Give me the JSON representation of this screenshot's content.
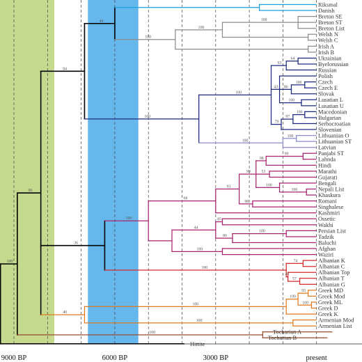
{
  "figure": {
    "time_axis": {
      "labels": [
        {
          "text": "9000 BP",
          "years_bp": 9000
        },
        {
          "text": "6000 BP",
          "years_bp": 6000
        },
        {
          "text": "3000 BP",
          "years_bp": 3000
        },
        {
          "text": "present",
          "years_bp": 0
        }
      ],
      "gridline_interval_years": 1000,
      "range_bp": [
        9500,
        0
      ]
    },
    "shaded_bands": [
      {
        "from_bp": 9500,
        "to_bp": 7800,
        "color": "#c5d98f"
      },
      {
        "from_bp": 6800,
        "to_bp": 5300,
        "color": "#66b8ec"
      }
    ],
    "leaves": [
      "Riksmal",
      "Danish",
      "Breton SE",
      "Breton ST",
      "Breton List",
      "Welsh N",
      "Welsh C",
      "Irish A",
      "Irish B",
      "Ukrainian",
      "Byelorussian",
      "Russian",
      "Polish",
      "Czech",
      "Czech E",
      "Slovak",
      "Lusatian L",
      "Lusatian U",
      "Macedonian",
      "Bulgarian",
      "Serbocroatian",
      "Slovenian",
      "Lithuanian O",
      "Lithuanian ST",
      "Latvian",
      "Panjabi ST",
      "Lahnda",
      "Hindi",
      "Marathi",
      "Gujarati",
      "Bengali",
      "Nepali List",
      "Khaskura",
      "Romani",
      "Singhalese",
      "Kashmiri",
      "Ossetic",
      "Wakhi",
      "Persian List",
      "Tadzik",
      "Baluchi",
      "Afghan",
      "Waziri",
      "Albanian K",
      "Albanian C",
      "Albanian Top",
      "Albanian T",
      "Albanian G",
      "Greek MD",
      "Greek Mod",
      "Greek ML",
      "Greek D",
      "Greek K",
      "Armenian Mod",
      "Armenian List",
      "Tocharian A",
      "Tocharian B",
      "Hittite"
    ],
    "clade_colors": {
      "germanic": "#1aa0dc",
      "celtic": "#8c8c8c",
      "slavic": "#1e2a80",
      "baltic": "#8c8ccc",
      "indo_iranian": "#a8236f",
      "albanian": "#d42a2a",
      "greek_armenian": "#e07b20",
      "tocharian": "#9a4a2e",
      "root": "#000000"
    },
    "support_values": [
      {
        "node": "celtic-root",
        "value": "100"
      },
      {
        "node": "brythonic",
        "value": "100"
      },
      {
        "node": "breton",
        "value": "100"
      },
      {
        "node": "germanic-celtic",
        "value": "44"
      },
      {
        "node": "balto-slavic",
        "value": "100"
      },
      {
        "node": "slavic",
        "value": "100"
      },
      {
        "node": "baltic",
        "value": "100"
      },
      {
        "node": "lithuanian",
        "value": "100"
      },
      {
        "node": "east-slavic",
        "value": "93"
      },
      {
        "node": "ukr-bye",
        "value": "64"
      },
      {
        "node": "west-slavic",
        "value": "43"
      },
      {
        "node": "czech-slovak",
        "value": "86"
      },
      {
        "node": "czech-pair",
        "value": "100"
      },
      {
        "node": "lusatian",
        "value": "100"
      },
      {
        "node": "south-slavic",
        "value": "79"
      },
      {
        "node": "mac-bul-ser",
        "value": "97"
      },
      {
        "node": "mac-bul",
        "value": "100"
      },
      {
        "node": "nw-ie",
        "value": "84"
      },
      {
        "node": "indo-iranian",
        "value": "100"
      },
      {
        "node": "indic",
        "value": "98"
      },
      {
        "node": "indic-core",
        "value": "93"
      },
      {
        "node": "indic-inner",
        "value": "99"
      },
      {
        "node": "hindi-group",
        "value": "98"
      },
      {
        "node": "panjabi-lahnda",
        "value": "99"
      },
      {
        "node": "marathi-group",
        "value": "53"
      },
      {
        "node": "bengali-group",
        "value": "100"
      },
      {
        "node": "nepali-khaskura",
        "value": "100"
      },
      {
        "node": "romani-singhalese",
        "value": "98"
      },
      {
        "node": "iranian",
        "value": "100"
      },
      {
        "node": "iranian-core",
        "value": "44"
      },
      {
        "node": "ossetic-wakhi",
        "value": "85"
      },
      {
        "node": "persian-group",
        "value": "86"
      },
      {
        "node": "persian-tadzik",
        "value": "100"
      },
      {
        "node": "baluchi-afghan",
        "value": "100"
      },
      {
        "node": "indo-albanian",
        "value": "36"
      },
      {
        "node": "albanian",
        "value": "100"
      },
      {
        "node": "albanian-kc",
        "value": "74"
      },
      {
        "node": "albanian-core",
        "value": "47"
      },
      {
        "node": "albanian-tg",
        "value": "57"
      },
      {
        "node": "core-ie",
        "value": "96"
      },
      {
        "node": "greek",
        "value": "100"
      },
      {
        "node": "greek-core",
        "value": "100"
      },
      {
        "node": "greek-md-mod",
        "value": "93"
      },
      {
        "node": "greek-ml-d",
        "value": "100"
      },
      {
        "node": "armenian",
        "value": "100"
      },
      {
        "node": "greco-armenian",
        "value": "40"
      },
      {
        "node": "tocharian",
        "value": "100"
      },
      {
        "node": "non-anatolian",
        "value": "100"
      }
    ]
  }
}
